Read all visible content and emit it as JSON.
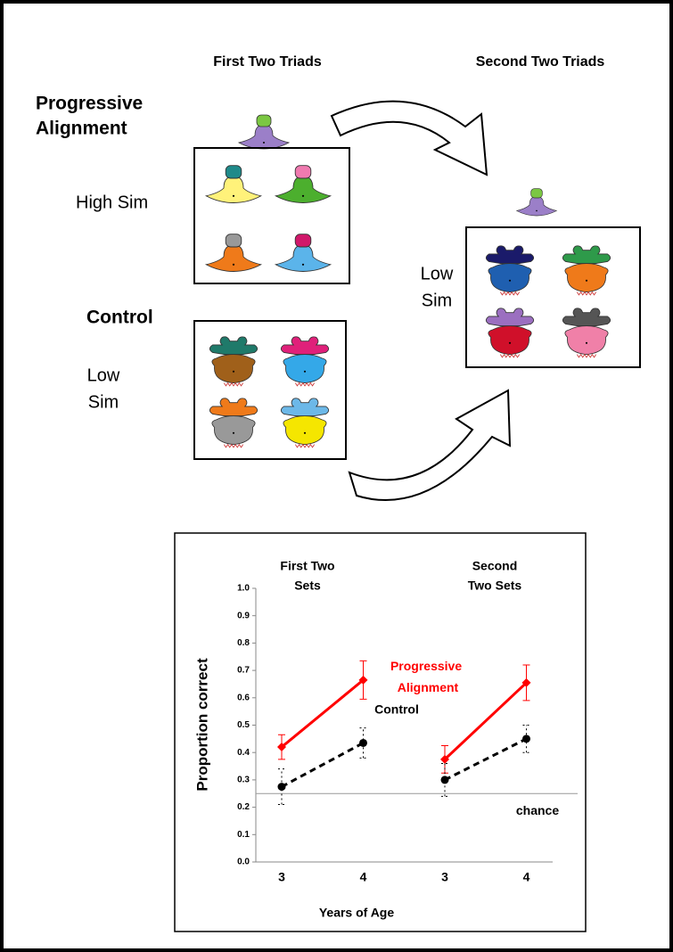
{
  "diagram": {
    "left_header": "First Two Triads",
    "right_header": "Second Two Triads",
    "progressive_label": [
      "Progressive",
      "Alignment"
    ],
    "high_sim": "High Sim",
    "control_label": "Control",
    "control_sim": [
      "Low",
      "Sim"
    ],
    "right_sim": [
      "Low",
      "Sim"
    ]
  },
  "chart_data": {
    "type": "line",
    "x_label": "Years of Age",
    "y_label": "Proportion correct",
    "categories": [
      "3",
      "4",
      null,
      "3",
      "4"
    ],
    "panel_titles": [
      [
        "First Two",
        "Sets"
      ],
      [
        "Second",
        "Two Sets"
      ]
    ],
    "ylim": [
      0,
      1
    ],
    "yticks": [
      {
        "value": 0,
        "label": "0.0"
      },
      0.1,
      0.2,
      0.3,
      0.4,
      0.5,
      0.6,
      0.7,
      0.8,
      0.9,
      {
        "value": 1,
        "label": "1.0"
      }
    ],
    "series": [
      {
        "name": "Progressive Alignment",
        "color": "#ff0000",
        "line_style": "solid",
        "marker": "diamond",
        "values": [
          0.42,
          0.665,
          null,
          0.375,
          0.655
        ],
        "errors": [
          0.045,
          0.07,
          null,
          0.05,
          0.065
        ]
      },
      {
        "name": "Control",
        "color": "#000000",
        "line_style": "dashed",
        "marker": "circle",
        "values": [
          0.275,
          0.435,
          null,
          0.3,
          0.45
        ],
        "errors": [
          0.065,
          0.055,
          null,
          0.06,
          0.05
        ]
      }
    ],
    "reference_line": {
      "value": 0.25,
      "label": "chance"
    }
  }
}
